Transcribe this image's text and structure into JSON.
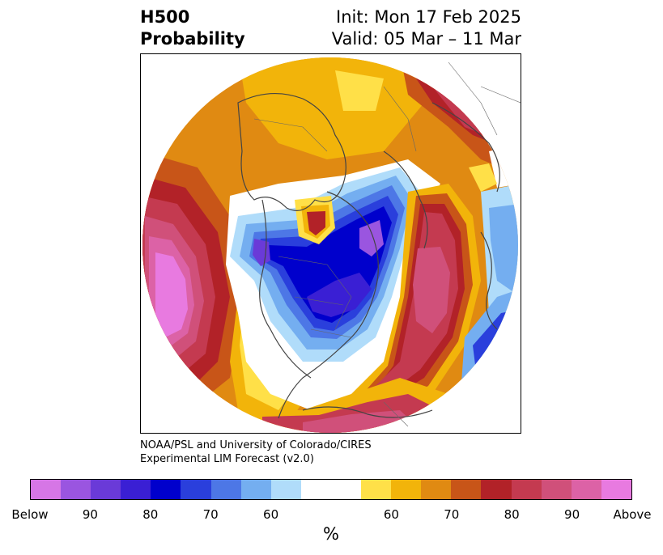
{
  "title": {
    "left_line1": "H500",
    "left_line2": "Probability",
    "right_line1": "Init: Mon 17 Feb 2025",
    "right_line2": "Valid: 05 Mar – 11 Mar"
  },
  "credit": {
    "line1": "NOAA/PSL and University of Colorado/CIRES",
    "line2": "Experimental LIM Forecast (v2.0)"
  },
  "colorbar": {
    "below_colors": [
      "#d676e6",
      "#9a55e0",
      "#6a3ad8",
      "#3a1fd4",
      "#0000cc",
      "#2a3fdc",
      "#4d77e6",
      "#74aef0",
      "#b0dcfa"
    ],
    "neutral_color": "#ffffff",
    "above_colors": [
      "#ffe048",
      "#f2b40a",
      "#e08a12",
      "#c85518",
      "#b22228",
      "#c43a50",
      "#d0507a",
      "#dc62a6",
      "#e87ae0"
    ],
    "tick_labels": [
      "Below",
      "90",
      "80",
      "70",
      "60",
      "60",
      "70",
      "80",
      "90",
      "Above"
    ],
    "unit_label": "%"
  },
  "map": {
    "projection": "north-polar-stereographic",
    "field": "500-hPa height above/below normal probability"
  }
}
